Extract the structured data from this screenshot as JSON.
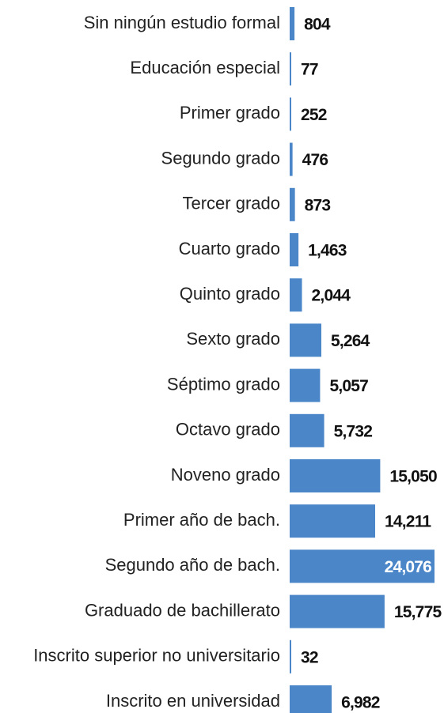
{
  "chart_data": {
    "type": "bar",
    "orientation": "horizontal",
    "color": "#4a86c8",
    "categories": [
      "Sin ningún estudio formal",
      "Educación especial",
      "Primer grado",
      "Segundo grado",
      "Tercer grado",
      "Cuarto grado",
      "Quinto grado",
      "Sexto grado",
      "Séptimo grado",
      "Octavo grado",
      "Noveno grado",
      "Primer año de bach.",
      "Segundo año de bach.",
      "Graduado de bachillerato",
      "Inscrito superior no universitario",
      "Inscrito en universidad"
    ],
    "values": [
      804,
      77,
      252,
      476,
      873,
      1463,
      2044,
      5264,
      5057,
      5732,
      15050,
      14211,
      24076,
      15775,
      32,
      6982
    ],
    "value_labels": [
      "804",
      "77",
      "252",
      "476",
      "873",
      "1,463",
      "2,044",
      "5,264",
      "5,057",
      "5,732",
      "15,050",
      "14,211",
      "24,076",
      "15,775",
      "32",
      "6,982"
    ]
  }
}
